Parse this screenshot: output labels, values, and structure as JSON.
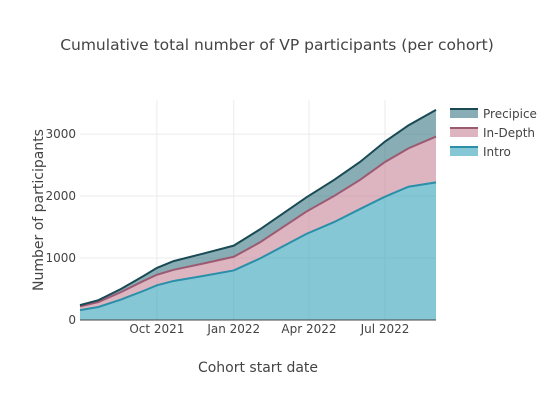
{
  "chart_data": {
    "type": "area",
    "title": "Cumulative total number of VP participants (per cohort)",
    "xlabel": "Cohort start date",
    "ylabel": "Number of participants",
    "x_ticks": [
      "Oct 2021",
      "Jan 2022",
      "Apr 2022",
      "Jul 2022"
    ],
    "x_tick_dates": [
      "2021-10-01",
      "2022-01-01",
      "2022-04-01",
      "2022-07-01"
    ],
    "y_ticks": [
      0,
      1000,
      2000,
      3000
    ],
    "xlim": [
      "2021-07-01",
      "2022-08-31"
    ],
    "ylim": [
      0,
      3550
    ],
    "stacked": true,
    "grid": true,
    "legend_position": "right",
    "x": [
      "2021-07-01",
      "2021-07-23",
      "2021-08-19",
      "2021-09-15",
      "2021-10-01",
      "2021-10-21",
      "2021-11-25",
      "2022-01-01",
      "2022-02-01",
      "2022-03-01",
      "2022-03-29",
      "2022-05-01",
      "2022-06-01",
      "2022-07-01",
      "2022-07-29",
      "2022-08-31"
    ],
    "series": [
      {
        "name": "Intro",
        "color": "#3aa5bc",
        "line_color": "#2a8fa8",
        "values": [
          160,
          210,
          330,
          470,
          560,
          630,
          710,
          800,
          990,
          1190,
          1390,
          1580,
          1790,
          1990,
          2150,
          2220
        ]
      },
      {
        "name": "In-Depth",
        "color": "#c8879b",
        "line_color": "#9c5a72",
        "values": [
          60,
          80,
          120,
          160,
          170,
          180,
          200,
          220,
          260,
          310,
          360,
          420,
          470,
          560,
          620,
          740
        ]
      },
      {
        "name": "Precipice",
        "color": "#3f7a86",
        "line_color": "#1a4a55",
        "values": [
          20,
          30,
          50,
          80,
          110,
          140,
          160,
          180,
          210,
          220,
          230,
          260,
          290,
          330,
          370,
          430
        ]
      }
    ]
  }
}
